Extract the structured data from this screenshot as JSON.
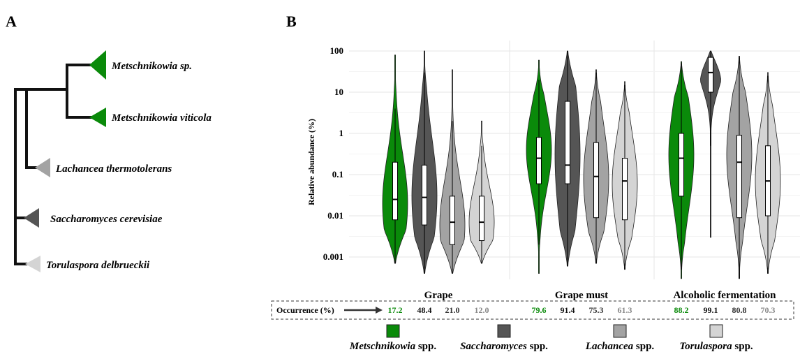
{
  "panel_a": {
    "letter": "A",
    "taxa": [
      {
        "genus": "Metschnikowia",
        "epithet": "sp.",
        "color": "#0a8a0a"
      },
      {
        "genus": "Metschnikowia",
        "epithet": "viticola",
        "color": "#0a8a0a"
      },
      {
        "genus": "Lachancea",
        "epithet": "thermotolerans",
        "color": "#a3a3a3"
      },
      {
        "genus": "Saccharomyces",
        "epithet": "cerevisiae",
        "color": "#555555"
      },
      {
        "genus": "Torulaspora",
        "epithet": "delbrueckii",
        "color": "#d4d4d4"
      }
    ]
  },
  "panel_b": {
    "letter": "B",
    "occurrence_label": "Occurrence (%)"
  },
  "chart_data": {
    "type": "violin",
    "ylabel": "Relative abundance (%)",
    "yscale": "log",
    "ylim": [
      0.001,
      100
    ],
    "yticks": [
      {
        "value": 100,
        "label": "100"
      },
      {
        "value": 10,
        "label": "10"
      },
      {
        "value": 1,
        "label": "1"
      },
      {
        "value": 0.1,
        "label": "0.1"
      },
      {
        "value": 0.01,
        "label": "0.01"
      },
      {
        "value": 0.001,
        "label": "0.001"
      }
    ],
    "grid": true,
    "categories": [
      "Grape",
      "Grape must",
      "Alcoholic fermentation"
    ],
    "series": [
      {
        "name_genus": "Metschnikowia",
        "name_suffix": "spp.",
        "color": "#0a8a0a",
        "occ_color": "#0a8a0a",
        "groups": [
          {
            "occurrence": "17.2",
            "min": 0.0007,
            "max": 80,
            "q1": 0.008,
            "median": 0.025,
            "q3": 0.2,
            "wlo": 0.0007,
            "whi": 4,
            "mode": 0.02,
            "spread": 1.2
          },
          {
            "occurrence": "79.6",
            "min": 0.0004,
            "max": 60,
            "q1": 0.06,
            "median": 0.25,
            "q3": 0.8,
            "wlo": 0.002,
            "whi": 20,
            "mode": 0.4,
            "spread": 1.0
          },
          {
            "occurrence": "88.2",
            "min": 0.0003,
            "max": 55,
            "q1": 0.03,
            "median": 0.25,
            "q3": 1.0,
            "wlo": 0.0005,
            "whi": 50,
            "mode": 0.3,
            "spread": 1.3
          }
        ]
      },
      {
        "name_genus": "Saccharomyces",
        "name_suffix": "spp.",
        "color": "#555555",
        "occ_color": "#111111",
        "groups": [
          {
            "occurrence": "48.4",
            "min": 0.0004,
            "max": 100,
            "q1": 0.006,
            "median": 0.028,
            "q3": 0.17,
            "wlo": 0.0004,
            "whi": 30,
            "mode": 0.03,
            "spread": 1.4
          },
          {
            "occurrence": "91.4",
            "min": 0.0006,
            "max": 100,
            "q1": 0.06,
            "median": 0.17,
            "q3": 6.0,
            "wlo": 0.0006,
            "whi": 100,
            "mode": 0.3,
            "spread": 1.8
          },
          {
            "occurrence": "99.1",
            "min": 0.003,
            "max": 100,
            "q1": 10,
            "median": 30,
            "q3": 70,
            "wlo": 0.5,
            "whi": 100,
            "mode": 45,
            "spread": 0.6
          }
        ]
      },
      {
        "name_genus": "Lachancea",
        "name_suffix": "spp.",
        "color": "#a3a3a3",
        "occ_color": "#333333",
        "groups": [
          {
            "occurrence": "21.0",
            "min": 0.0004,
            "max": 35,
            "q1": 0.002,
            "median": 0.007,
            "q3": 0.03,
            "wlo": 0.0004,
            "whi": 2,
            "mode": 0.006,
            "spread": 1.1
          },
          {
            "occurrence": "75.3",
            "min": 0.0007,
            "max": 35,
            "q1": 0.009,
            "median": 0.09,
            "q3": 0.6,
            "wlo": 0.0007,
            "whi": 30,
            "mode": 0.08,
            "spread": 1.3
          },
          {
            "occurrence": "80.8",
            "min": 0.0003,
            "max": 75,
            "q1": 0.009,
            "median": 0.2,
            "q3": 0.9,
            "wlo": 0.0003,
            "whi": 70,
            "mode": 0.3,
            "spread": 1.3
          }
        ]
      },
      {
        "name_genus": "Torulaspora",
        "name_suffix": "spp.",
        "color": "#d4d4d4",
        "occ_color": "#888888",
        "groups": [
          {
            "occurrence": "12.0",
            "min": 0.0007,
            "max": 2,
            "q1": 0.0025,
            "median": 0.007,
            "q3": 0.03,
            "wlo": 0.0007,
            "whi": 0.5,
            "mode": 0.007,
            "spread": 0.9
          },
          {
            "occurrence": "61.3",
            "min": 0.0005,
            "max": 18,
            "q1": 0.008,
            "median": 0.07,
            "q3": 0.25,
            "wlo": 0.0005,
            "whi": 15,
            "mode": 0.06,
            "spread": 1.2
          },
          {
            "occurrence": "70.3",
            "min": 0.0004,
            "max": 30,
            "q1": 0.01,
            "median": 0.07,
            "q3": 0.5,
            "wlo": 0.0004,
            "whi": 25,
            "mode": 0.07,
            "spread": 1.3
          }
        ]
      }
    ]
  }
}
